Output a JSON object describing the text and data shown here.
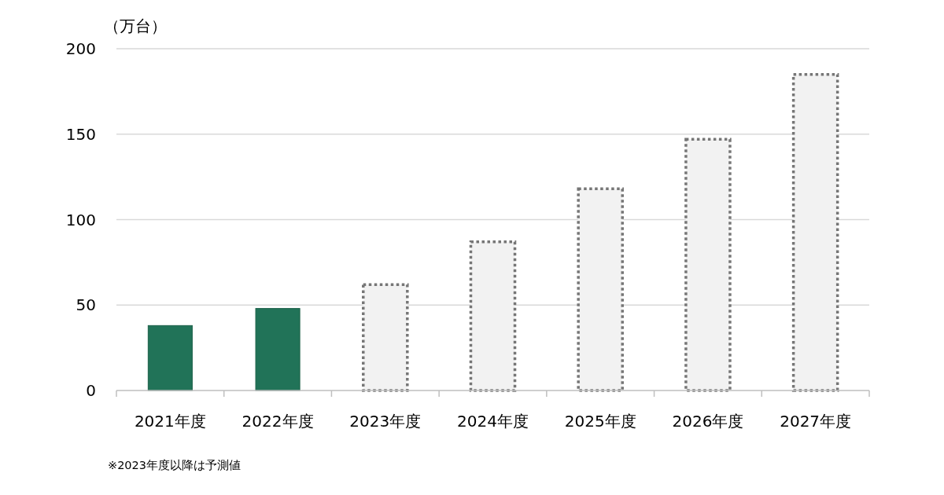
{
  "chart_data": {
    "type": "bar",
    "ylabel": "（万台）",
    "categories": [
      "2021年度",
      "2022年度",
      "2023年度",
      "2024年度",
      "2025年度",
      "2026年度",
      "2027年度"
    ],
    "series": [
      {
        "color": "#217358",
        "values": [
          38,
          48,
          null,
          null,
          null,
          null,
          null
        ]
      },
      {
        "color": "#f2f2f2",
        "line_style": "dotted",
        "values": [
          null,
          null,
          62,
          87,
          118,
          147,
          185
        ]
      }
    ],
    "stacked": true,
    "ylim": [
      0,
      200
    ],
    "yticks": [
      0,
      50,
      100,
      150,
      200
    ],
    "grid": "y",
    "annotations": [
      "※2023年度以降は予測値"
    ]
  }
}
